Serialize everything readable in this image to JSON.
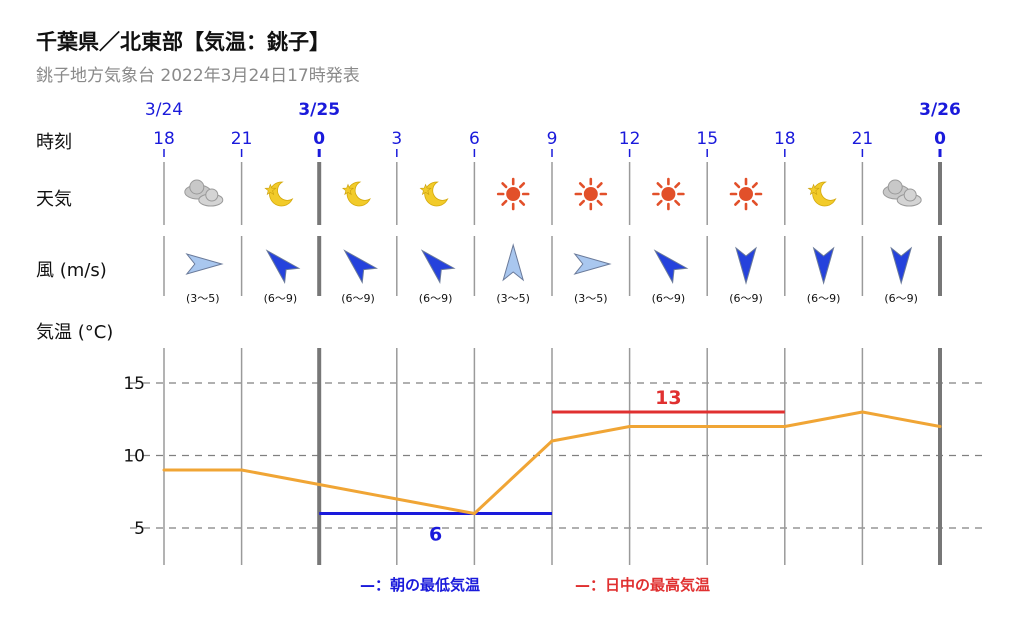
{
  "header": {
    "title": "千葉県／北東部【気温：銚子】",
    "subtitle": "銚子地方気象台 2022年3月24日17時発表"
  },
  "rows": {
    "time": "時刻",
    "weather": "天気",
    "wind": "風 (m/s)",
    "temp": "気温 (°C)"
  },
  "dates": [
    {
      "label": "3/24",
      "hour_index": 0,
      "bold": false
    },
    {
      "label": "3/25",
      "hour_index": 2,
      "bold": true
    },
    {
      "label": "3/26",
      "hour_index": 10,
      "bold": true
    }
  ],
  "hours": [
    "18",
    "21",
    "0",
    "3",
    "6",
    "9",
    "12",
    "15",
    "18",
    "21",
    "0"
  ],
  "weather_icons": [
    "cloud-icon",
    "moon-icon",
    "moon-icon",
    "moon-icon",
    "sun-icon",
    "sun-icon",
    "sun-icon",
    "sun-icon",
    "moon-icon",
    "cloud-icon"
  ],
  "wind": [
    {
      "dir": "東",
      "speed": "(3〜5)"
    },
    {
      "dir": "北西",
      "speed": "(6〜9)"
    },
    {
      "dir": "北西",
      "speed": "(6〜9)"
    },
    {
      "dir": "北西",
      "speed": "(6〜9)"
    },
    {
      "dir": "北",
      "speed": "(3〜5)"
    },
    {
      "dir": "東",
      "speed": "(3〜5)"
    },
    {
      "dir": "北西",
      "speed": "(6〜9)"
    },
    {
      "dir": "南",
      "speed": "(6〜9)"
    },
    {
      "dir": "南",
      "speed": "(6〜9)"
    },
    {
      "dir": "南",
      "speed": "(6〜9)"
    }
  ],
  "colors": {
    "temp_line": "#f0a535",
    "min_line": "#1a1adb",
    "max_line": "#e03030",
    "wind_strong": "#2542dc",
    "wind_weak": "#a9c7ef",
    "sun": "#e2502a",
    "moon": "#f2cb2a",
    "cloud": "#c8c8c8"
  },
  "chart_data": {
    "type": "line",
    "x": [
      "18",
      "21",
      "0",
      "3",
      "6",
      "9",
      "12",
      "15",
      "18",
      "21",
      "0"
    ],
    "series": [
      {
        "values": [
          9,
          9,
          8,
          7,
          6,
          11,
          12,
          12,
          12,
          13,
          12
        ]
      }
    ],
    "min_temp": {
      "value": 6,
      "label": "6",
      "from_index": 2,
      "to_index": 5
    },
    "max_temp": {
      "value": 13,
      "label": "13",
      "from_index": 5,
      "to_index": 8
    },
    "yticks": [
      5,
      10,
      15
    ],
    "ylim": [
      3,
      17
    ],
    "grid": true
  },
  "legend": {
    "min_label": "—：朝の最低気温",
    "max_label": "—：日中の最高気温"
  }
}
